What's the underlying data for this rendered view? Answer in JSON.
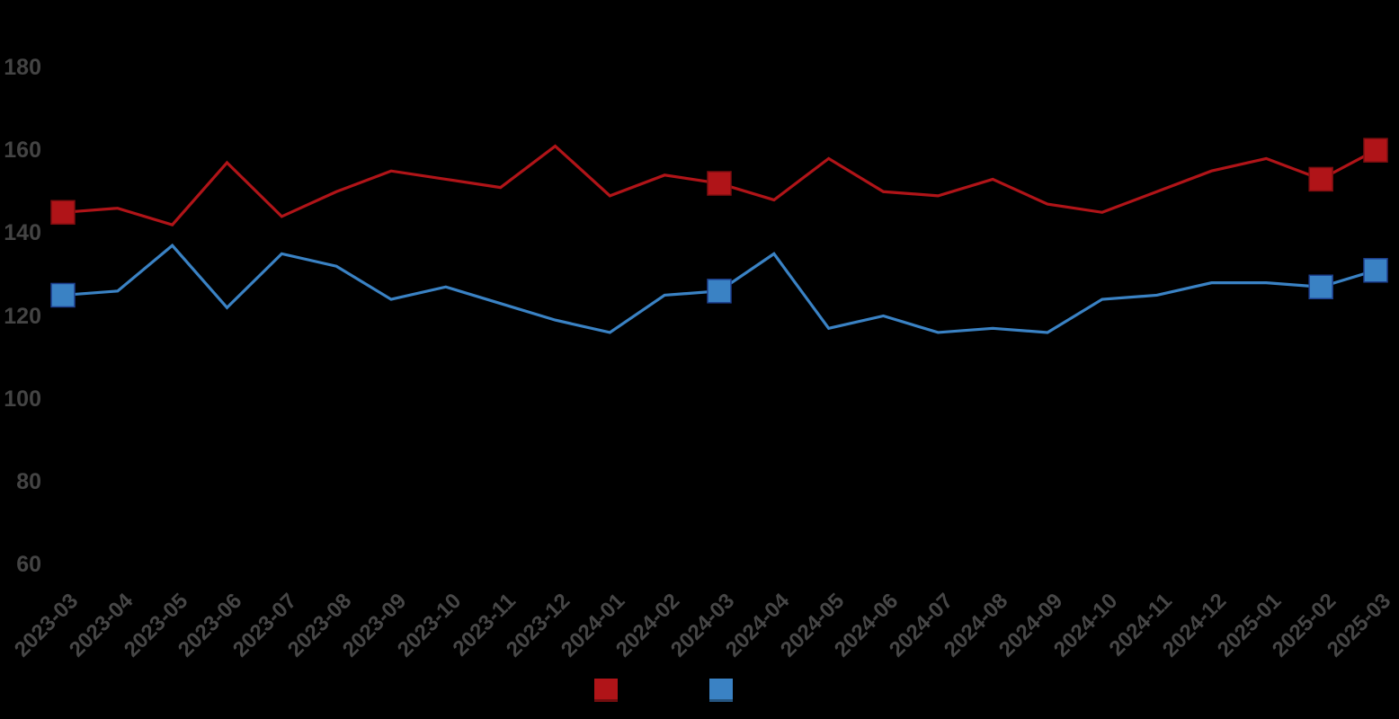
{
  "chart_data": {
    "type": "line",
    "title": "",
    "x": [
      "2023-03",
      "2023-04",
      "2023-05",
      "2023-06",
      "2023-07",
      "2023-08",
      "2023-09",
      "2023-10",
      "2023-11",
      "2023-12",
      "2024-01",
      "2024-02",
      "2024-03",
      "2024-04",
      "2024-05",
      "2024-06",
      "2024-07",
      "2024-08",
      "2024-09",
      "2024-10",
      "2024-11",
      "2024-12",
      "2025-01",
      "2025-02",
      "2025-03"
    ],
    "series": [
      {
        "id": "red",
        "label": "",
        "color": "#b01418",
        "marker_edge": "#7d0e10",
        "values": [
          145,
          146,
          142,
          157,
          144,
          150,
          155,
          153,
          151,
          161,
          149,
          154,
          152,
          148,
          158,
          150,
          149,
          153,
          147,
          145,
          150,
          155,
          158,
          153,
          160
        ]
      },
      {
        "id": "blue",
        "label": "",
        "color": "#3a82c4",
        "marker_edge": "#1d3f8f",
        "values": [
          125,
          126,
          137,
          122,
          135,
          132,
          124,
          127,
          123,
          119,
          116,
          125,
          126,
          135,
          117,
          120,
          116,
          117,
          116,
          124,
          125,
          128,
          128,
          127,
          131
        ]
      }
    ],
    "marker_indices": [
      0,
      12,
      23,
      24
    ],
    "y_ticks": [
      180,
      160,
      140,
      120,
      100,
      80,
      60
    ],
    "ylim": [
      60,
      180
    ],
    "grid": false,
    "axis_tick_color": "#464646",
    "background": "#000000",
    "legend": {
      "position": "bottom",
      "entries": [
        {
          "swatch_color": "#b01418",
          "label": ""
        },
        {
          "swatch_color": "#3a82c4",
          "label": ""
        }
      ]
    }
  }
}
